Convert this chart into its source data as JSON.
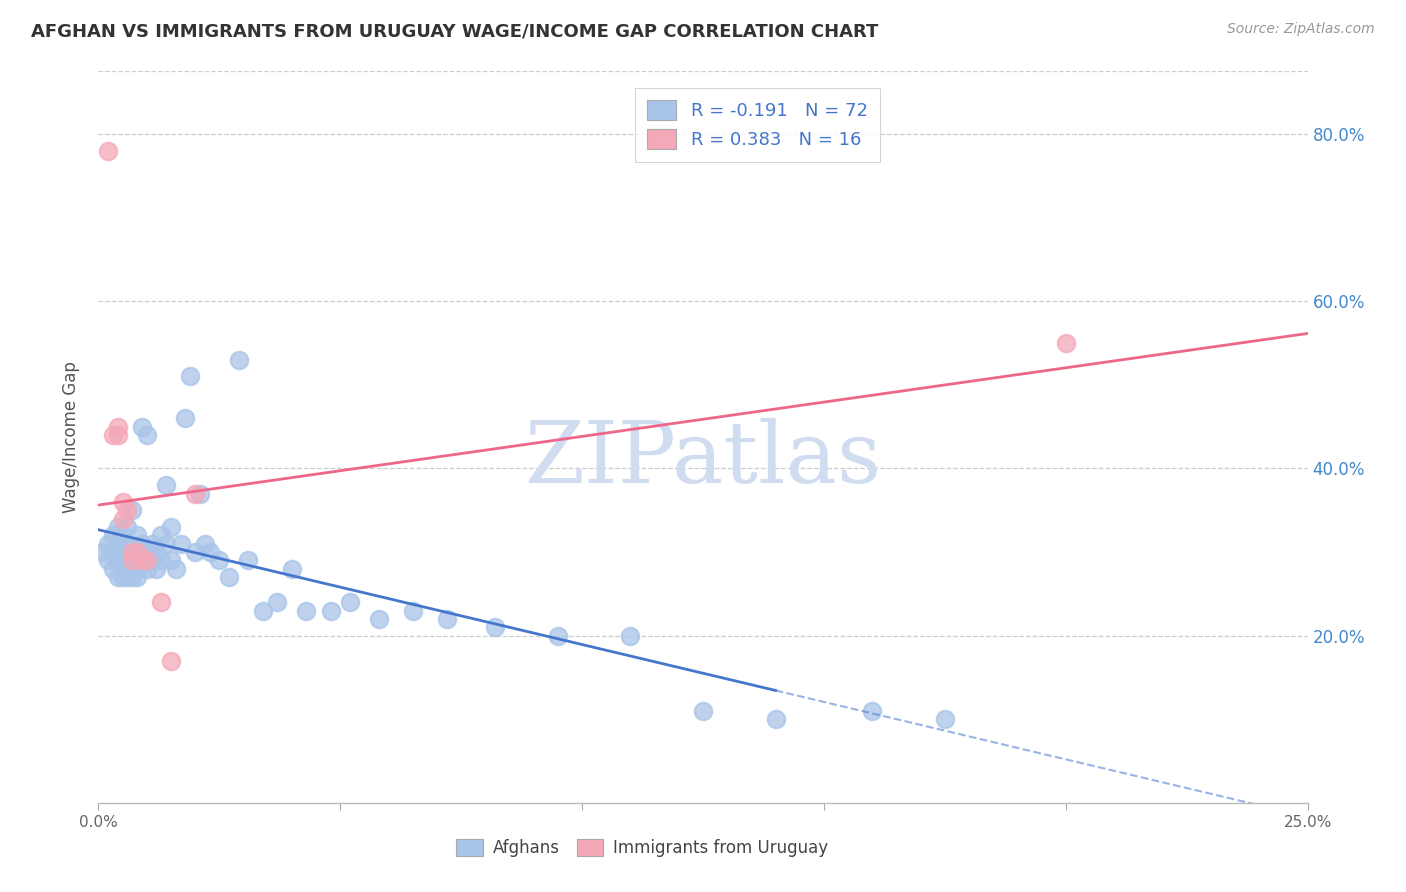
{
  "title": "AFGHAN VS IMMIGRANTS FROM URUGUAY WAGE/INCOME GAP CORRELATION CHART",
  "source": "Source: ZipAtlas.com",
  "ylabel": "Wage/Income Gap",
  "x_min": 0.0,
  "x_max": 0.25,
  "y_min": 0.0,
  "y_max": 0.875,
  "y_ticks": [
    0.2,
    0.4,
    0.6,
    0.8
  ],
  "y_tick_labels": [
    "20.0%",
    "40.0%",
    "60.0%",
    "80.0%"
  ],
  "x_ticks": [
    0.0,
    0.05,
    0.1,
    0.15,
    0.2,
    0.25
  ],
  "x_tick_labels": [
    "0.0%",
    "",
    "",
    "",
    "",
    "25.0%"
  ],
  "blue_R": "-0.191",
  "blue_N": "72",
  "pink_R": "0.383",
  "pink_N": "16",
  "blue_scatter_color": "#A8C4E8",
  "pink_scatter_color": "#F4A8B8",
  "blue_line_color": "#4477CC",
  "pink_line_color": "#EE6688",
  "blue_legend_color": "#A8C4E8",
  "pink_legend_color": "#F4A8B8",
  "legend_text_color": "#4477CC",
  "watermark_color": "#D0DCF0",
  "watermark_text": "ZIPatlas",
  "legend_label_blue": "Afghans",
  "legend_label_pink": "Immigrants from Uruguay",
  "blue_x": [
    0.001,
    0.002,
    0.002,
    0.003,
    0.003,
    0.003,
    0.004,
    0.004,
    0.004,
    0.004,
    0.005,
    0.005,
    0.005,
    0.005,
    0.005,
    0.006,
    0.006,
    0.006,
    0.006,
    0.007,
    0.007,
    0.007,
    0.007,
    0.007,
    0.008,
    0.008,
    0.008,
    0.008,
    0.009,
    0.009,
    0.009,
    0.01,
    0.01,
    0.01,
    0.011,
    0.011,
    0.012,
    0.012,
    0.013,
    0.013,
    0.014,
    0.014,
    0.015,
    0.015,
    0.016,
    0.017,
    0.018,
    0.019,
    0.02,
    0.021,
    0.022,
    0.023,
    0.025,
    0.027,
    0.029,
    0.031,
    0.034,
    0.037,
    0.04,
    0.043,
    0.048,
    0.052,
    0.058,
    0.065,
    0.072,
    0.082,
    0.095,
    0.11,
    0.125,
    0.14,
    0.16,
    0.175
  ],
  "blue_y": [
    0.3,
    0.31,
    0.29,
    0.28,
    0.32,
    0.3,
    0.29,
    0.31,
    0.27,
    0.33,
    0.28,
    0.3,
    0.29,
    0.27,
    0.32,
    0.29,
    0.31,
    0.27,
    0.33,
    0.28,
    0.3,
    0.27,
    0.29,
    0.35,
    0.28,
    0.3,
    0.27,
    0.32,
    0.29,
    0.31,
    0.45,
    0.28,
    0.3,
    0.44,
    0.29,
    0.31,
    0.28,
    0.3,
    0.29,
    0.32,
    0.31,
    0.38,
    0.29,
    0.33,
    0.28,
    0.31,
    0.46,
    0.51,
    0.3,
    0.37,
    0.31,
    0.3,
    0.29,
    0.27,
    0.53,
    0.29,
    0.23,
    0.24,
    0.28,
    0.23,
    0.23,
    0.24,
    0.22,
    0.23,
    0.22,
    0.21,
    0.2,
    0.2,
    0.11,
    0.1,
    0.11,
    0.1
  ],
  "pink_x": [
    0.002,
    0.003,
    0.004,
    0.004,
    0.005,
    0.005,
    0.006,
    0.007,
    0.007,
    0.008,
    0.009,
    0.01,
    0.013,
    0.015,
    0.02,
    0.2
  ],
  "pink_y": [
    0.78,
    0.44,
    0.45,
    0.44,
    0.34,
    0.36,
    0.35,
    0.29,
    0.3,
    0.3,
    0.29,
    0.29,
    0.24,
    0.17,
    0.37,
    0.55
  ]
}
